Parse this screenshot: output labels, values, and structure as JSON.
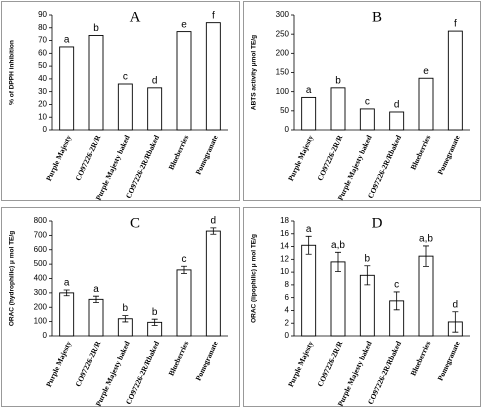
{
  "chart_data": [
    {
      "type": "bar",
      "title": "A",
      "y_label": "% of DPPH inhibition",
      "categories": [
        "Purple Majesty",
        "CO97226-2R/R",
        "Purple Majesty baked",
        "CO97226-2R/Rbaked",
        "Blueberries",
        "Pomegranate"
      ],
      "values": [
        65,
        74,
        36,
        33,
        77,
        84
      ],
      "annotations": [
        "a",
        "b",
        "c",
        "d",
        "e",
        "f"
      ],
      "ylim": [
        0,
        90
      ],
      "yticks": [
        0,
        10,
        20,
        30,
        40,
        50,
        60,
        70,
        80,
        90
      ],
      "color": "#ffffff"
    },
    {
      "type": "bar",
      "title": "B",
      "y_label": "ABTS activity μmol TE/g",
      "categories": [
        "Purple Majesty",
        "CO97226-2R/R",
        "Purple Majesty baked",
        "CO97226-2R/Rbaked",
        "Blueberries",
        "Pomegranate"
      ],
      "values": [
        85,
        110,
        55,
        47,
        135,
        258
      ],
      "annotations": [
        "a",
        "b",
        "c",
        "d",
        "e",
        "f"
      ],
      "ylim": [
        0,
        300
      ],
      "yticks": [
        0,
        50,
        100,
        150,
        200,
        250,
        300
      ],
      "color": "#ffffff"
    },
    {
      "type": "bar",
      "title": "C",
      "y_label": "ORAC (hydrophilic) μ mol TE/g",
      "categories": [
        "Purple Majesty",
        "CO97226-2R/R",
        "Purple Majesty baked",
        "CO97226-2R/Rbaked",
        "Blueberries",
        "Pomegranate"
      ],
      "values": [
        300,
        255,
        120,
        95,
        460,
        730
      ],
      "errors": [
        20,
        22,
        22,
        22,
        25,
        22
      ],
      "annotations": [
        "a",
        "a",
        "b",
        "b",
        "c",
        "d"
      ],
      "ylim": [
        0,
        800
      ],
      "yticks": [
        0,
        100,
        200,
        300,
        400,
        500,
        600,
        700,
        800
      ],
      "color": "#ffffff"
    },
    {
      "type": "bar",
      "title": "D",
      "y_label": "ORAC (lipophilic) μ mol TE/g",
      "categories": [
        "Purple Majesty",
        "CO97226-2R/R",
        "Purple Majesty baked",
        "CO97226-2R/Rbaked",
        "Blueberries",
        "Pomegranate"
      ],
      "values": [
        14.2,
        11.6,
        9.5,
        5.5,
        12.5,
        2.2
      ],
      "errors": [
        1.4,
        1.5,
        1.5,
        1.4,
        1.6,
        1.6
      ],
      "annotations": [
        "a",
        "a,b",
        "b",
        "c",
        "a,b",
        "d"
      ],
      "ylim": [
        0,
        18
      ],
      "yticks": [
        0,
        2,
        4,
        6,
        8,
        10,
        12,
        14,
        16,
        18
      ],
      "color": "#ffffff"
    }
  ]
}
